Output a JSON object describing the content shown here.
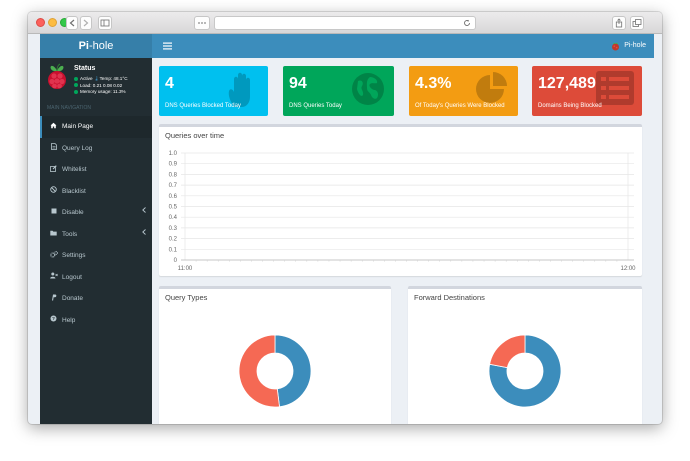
{
  "header": {
    "logo_bold": "Pi",
    "logo_rest": "-hole",
    "user_label": "Pi-hole"
  },
  "status": {
    "title": "Status",
    "active": "Active",
    "temp": "Temp: 48.1°C",
    "load": "Load:  0.21  0.08  0.02",
    "memory": "Memory usage:  11.3%"
  },
  "sidebar": {
    "nav_header": "MAIN NAVIGATION",
    "items": [
      {
        "label": "Main Page",
        "icon": "home-icon"
      },
      {
        "label": "Query Log",
        "icon": "file-icon"
      },
      {
        "label": "Whitelist",
        "icon": "pencil-square-icon"
      },
      {
        "label": "Blacklist",
        "icon": "ban-icon"
      },
      {
        "label": "Disable",
        "icon": "stop-icon"
      },
      {
        "label": "Tools",
        "icon": "folder-icon"
      },
      {
        "label": "Settings",
        "icon": "gears-icon"
      },
      {
        "label": "Logout",
        "icon": "user-times-icon"
      },
      {
        "label": "Donate",
        "icon": "paypal-icon"
      },
      {
        "label": "Help",
        "icon": "question-circle-icon"
      }
    ]
  },
  "stats": [
    {
      "value": "4",
      "label": "DNS Queries Blocked Today",
      "color": "#00c0ef",
      "icon": "hand-stop-icon"
    },
    {
      "value": "94",
      "label": "DNS Queries Today",
      "color": "#00a65a",
      "icon": "globe-icon"
    },
    {
      "value": "4.3%",
      "label": "Of Today's Queries Were Blocked",
      "color": "#f39c12",
      "icon": "pie-chart-icon"
    },
    {
      "value": "127,489",
      "label": "Domains Being Blocked",
      "color": "#dd4b39",
      "icon": "list-icon"
    }
  ],
  "queries_chart": {
    "title": "Queries over time",
    "y_ticks": [
      "1.0",
      "0.9",
      "0.8",
      "0.7",
      "0.6",
      "0.5",
      "0.4",
      "0.3",
      "0.2",
      "0.1",
      "0"
    ],
    "x_ticks": [
      "11:00",
      "12:00"
    ]
  },
  "query_types": {
    "title": "Query Types"
  },
  "forward_destinations": {
    "title": "Forward Destinations"
  },
  "chart_data": [
    {
      "type": "line",
      "title": "Queries over time",
      "ylim": [
        0,
        1.0
      ],
      "y_ticks": [
        1.0,
        0.9,
        0.8,
        0.7,
        0.6,
        0.5,
        0.4,
        0.3,
        0.2,
        0.1,
        0
      ],
      "x_ticks": [
        "11:00",
        "12:00"
      ],
      "grid": true,
      "series": []
    },
    {
      "type": "pie",
      "title": "Query Types",
      "values": [
        0.48,
        0.52
      ],
      "colors": [
        "#3c8dbc",
        "#f56954"
      ]
    },
    {
      "type": "pie",
      "title": "Forward Destinations",
      "values": [
        0.78,
        0.22
      ],
      "colors": [
        "#3c8dbc",
        "#f56954"
      ]
    }
  ]
}
